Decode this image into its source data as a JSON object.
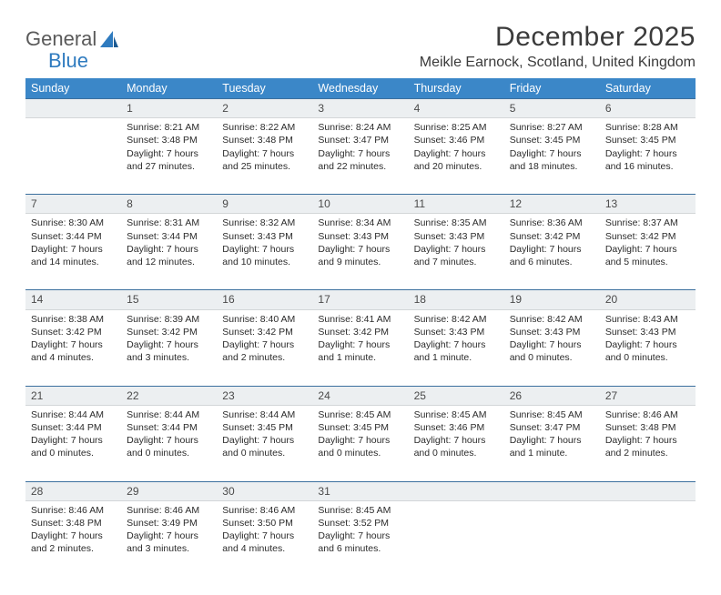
{
  "logo": {
    "text1": "General",
    "text2": "Blue"
  },
  "title": "December 2025",
  "location": "Meikle Earnock, Scotland, United Kingdom",
  "colors": {
    "header_bg": "#3b87c8",
    "header_text": "#ffffff",
    "daynum_bg": "#eceff1",
    "daynum_border_top": "#3b6f9e",
    "logo_blue": "#2f7bbf"
  },
  "weekdays": [
    "Sunday",
    "Monday",
    "Tuesday",
    "Wednesday",
    "Thursday",
    "Friday",
    "Saturday"
  ],
  "weeks": [
    [
      {
        "n": "",
        "lines": []
      },
      {
        "n": "1",
        "lines": [
          "Sunrise: 8:21 AM",
          "Sunset: 3:48 PM",
          "Daylight: 7 hours and 27 minutes."
        ]
      },
      {
        "n": "2",
        "lines": [
          "Sunrise: 8:22 AM",
          "Sunset: 3:48 PM",
          "Daylight: 7 hours and 25 minutes."
        ]
      },
      {
        "n": "3",
        "lines": [
          "Sunrise: 8:24 AM",
          "Sunset: 3:47 PM",
          "Daylight: 7 hours and 22 minutes."
        ]
      },
      {
        "n": "4",
        "lines": [
          "Sunrise: 8:25 AM",
          "Sunset: 3:46 PM",
          "Daylight: 7 hours and 20 minutes."
        ]
      },
      {
        "n": "5",
        "lines": [
          "Sunrise: 8:27 AM",
          "Sunset: 3:45 PM",
          "Daylight: 7 hours and 18 minutes."
        ]
      },
      {
        "n": "6",
        "lines": [
          "Sunrise: 8:28 AM",
          "Sunset: 3:45 PM",
          "Daylight: 7 hours and 16 minutes."
        ]
      }
    ],
    [
      {
        "n": "7",
        "lines": [
          "Sunrise: 8:30 AM",
          "Sunset: 3:44 PM",
          "Daylight: 7 hours and 14 minutes."
        ]
      },
      {
        "n": "8",
        "lines": [
          "Sunrise: 8:31 AM",
          "Sunset: 3:44 PM",
          "Daylight: 7 hours and 12 minutes."
        ]
      },
      {
        "n": "9",
        "lines": [
          "Sunrise: 8:32 AM",
          "Sunset: 3:43 PM",
          "Daylight: 7 hours and 10 minutes."
        ]
      },
      {
        "n": "10",
        "lines": [
          "Sunrise: 8:34 AM",
          "Sunset: 3:43 PM",
          "Daylight: 7 hours and 9 minutes."
        ]
      },
      {
        "n": "11",
        "lines": [
          "Sunrise: 8:35 AM",
          "Sunset: 3:43 PM",
          "Daylight: 7 hours and 7 minutes."
        ]
      },
      {
        "n": "12",
        "lines": [
          "Sunrise: 8:36 AM",
          "Sunset: 3:42 PM",
          "Daylight: 7 hours and 6 minutes."
        ]
      },
      {
        "n": "13",
        "lines": [
          "Sunrise: 8:37 AM",
          "Sunset: 3:42 PM",
          "Daylight: 7 hours and 5 minutes."
        ]
      }
    ],
    [
      {
        "n": "14",
        "lines": [
          "Sunrise: 8:38 AM",
          "Sunset: 3:42 PM",
          "Daylight: 7 hours and 4 minutes."
        ]
      },
      {
        "n": "15",
        "lines": [
          "Sunrise: 8:39 AM",
          "Sunset: 3:42 PM",
          "Daylight: 7 hours and 3 minutes."
        ]
      },
      {
        "n": "16",
        "lines": [
          "Sunrise: 8:40 AM",
          "Sunset: 3:42 PM",
          "Daylight: 7 hours and 2 minutes."
        ]
      },
      {
        "n": "17",
        "lines": [
          "Sunrise: 8:41 AM",
          "Sunset: 3:42 PM",
          "Daylight: 7 hours and 1 minute."
        ]
      },
      {
        "n": "18",
        "lines": [
          "Sunrise: 8:42 AM",
          "Sunset: 3:43 PM",
          "Daylight: 7 hours and 1 minute."
        ]
      },
      {
        "n": "19",
        "lines": [
          "Sunrise: 8:42 AM",
          "Sunset: 3:43 PM",
          "Daylight: 7 hours and 0 minutes."
        ]
      },
      {
        "n": "20",
        "lines": [
          "Sunrise: 8:43 AM",
          "Sunset: 3:43 PM",
          "Daylight: 7 hours and 0 minutes."
        ]
      }
    ],
    [
      {
        "n": "21",
        "lines": [
          "Sunrise: 8:44 AM",
          "Sunset: 3:44 PM",
          "Daylight: 7 hours and 0 minutes."
        ]
      },
      {
        "n": "22",
        "lines": [
          "Sunrise: 8:44 AM",
          "Sunset: 3:44 PM",
          "Daylight: 7 hours and 0 minutes."
        ]
      },
      {
        "n": "23",
        "lines": [
          "Sunrise: 8:44 AM",
          "Sunset: 3:45 PM",
          "Daylight: 7 hours and 0 minutes."
        ]
      },
      {
        "n": "24",
        "lines": [
          "Sunrise: 8:45 AM",
          "Sunset: 3:45 PM",
          "Daylight: 7 hours and 0 minutes."
        ]
      },
      {
        "n": "25",
        "lines": [
          "Sunrise: 8:45 AM",
          "Sunset: 3:46 PM",
          "Daylight: 7 hours and 0 minutes."
        ]
      },
      {
        "n": "26",
        "lines": [
          "Sunrise: 8:45 AM",
          "Sunset: 3:47 PM",
          "Daylight: 7 hours and 1 minute."
        ]
      },
      {
        "n": "27",
        "lines": [
          "Sunrise: 8:46 AM",
          "Sunset: 3:48 PM",
          "Daylight: 7 hours and 2 minutes."
        ]
      }
    ],
    [
      {
        "n": "28",
        "lines": [
          "Sunrise: 8:46 AM",
          "Sunset: 3:48 PM",
          "Daylight: 7 hours and 2 minutes."
        ]
      },
      {
        "n": "29",
        "lines": [
          "Sunrise: 8:46 AM",
          "Sunset: 3:49 PM",
          "Daylight: 7 hours and 3 minutes."
        ]
      },
      {
        "n": "30",
        "lines": [
          "Sunrise: 8:46 AM",
          "Sunset: 3:50 PM",
          "Daylight: 7 hours and 4 minutes."
        ]
      },
      {
        "n": "31",
        "lines": [
          "Sunrise: 8:45 AM",
          "Sunset: 3:52 PM",
          "Daylight: 7 hours and 6 minutes."
        ]
      },
      {
        "n": "",
        "lines": []
      },
      {
        "n": "",
        "lines": []
      },
      {
        "n": "",
        "lines": []
      }
    ]
  ]
}
